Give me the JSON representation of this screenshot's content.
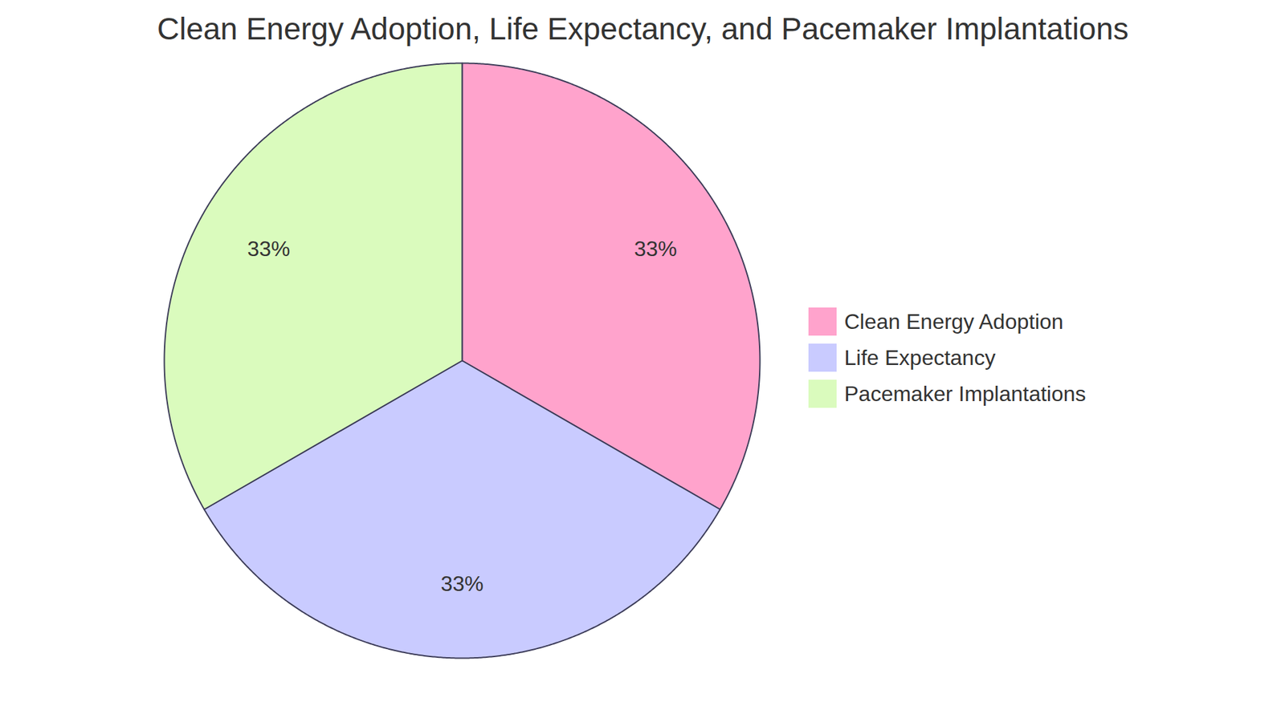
{
  "chart_data": {
    "type": "pie",
    "title": "Clean Energy Adoption, Life Expectancy, and Pacemaker Implantations",
    "categories": [
      "Clean Energy Adoption",
      "Life Expectancy",
      "Pacemaker Implantations"
    ],
    "values": [
      33,
      33,
      33
    ],
    "value_labels": [
      "33%",
      "33%",
      "33%"
    ],
    "colors": [
      "#ffa3cc",
      "#c9cbff",
      "#dafbbd"
    ],
    "data_labels": true,
    "legend": "right"
  }
}
